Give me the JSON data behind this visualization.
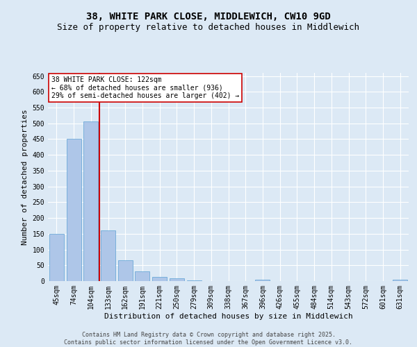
{
  "title_line1": "38, WHITE PARK CLOSE, MIDDLEWICH, CW10 9GD",
  "title_line2": "Size of property relative to detached houses in Middlewich",
  "xlabel": "Distribution of detached houses by size in Middlewich",
  "ylabel": "Number of detached properties",
  "categories": [
    "45sqm",
    "74sqm",
    "104sqm",
    "133sqm",
    "162sqm",
    "191sqm",
    "221sqm",
    "250sqm",
    "279sqm",
    "309sqm",
    "338sqm",
    "367sqm",
    "396sqm",
    "426sqm",
    "455sqm",
    "484sqm",
    "514sqm",
    "543sqm",
    "572sqm",
    "601sqm",
    "631sqm"
  ],
  "values": [
    150,
    450,
    507,
    160,
    67,
    30,
    13,
    8,
    3,
    0,
    0,
    0,
    4,
    0,
    0,
    0,
    0,
    0,
    0,
    0,
    4
  ],
  "bar_color": "#aec6e8",
  "bar_edgecolor": "#5a9fd4",
  "vline_color": "#cc0000",
  "annotation_text": "38 WHITE PARK CLOSE: 122sqm\n← 68% of detached houses are smaller (936)\n29% of semi-detached houses are larger (402) →",
  "annotation_box_color": "#ffffff",
  "annotation_box_edgecolor": "#cc0000",
  "ylim": [
    0,
    660
  ],
  "yticks": [
    0,
    50,
    100,
    150,
    200,
    250,
    300,
    350,
    400,
    450,
    500,
    550,
    600,
    650
  ],
  "background_color": "#dce9f5",
  "grid_color": "#ffffff",
  "footer_line1": "Contains HM Land Registry data © Crown copyright and database right 2025.",
  "footer_line2": "Contains public sector information licensed under the Open Government Licence v3.0.",
  "title_fontsize": 10,
  "subtitle_fontsize": 9,
  "axis_label_fontsize": 8,
  "tick_fontsize": 7,
  "annotation_fontsize": 7,
  "footer_fontsize": 6
}
